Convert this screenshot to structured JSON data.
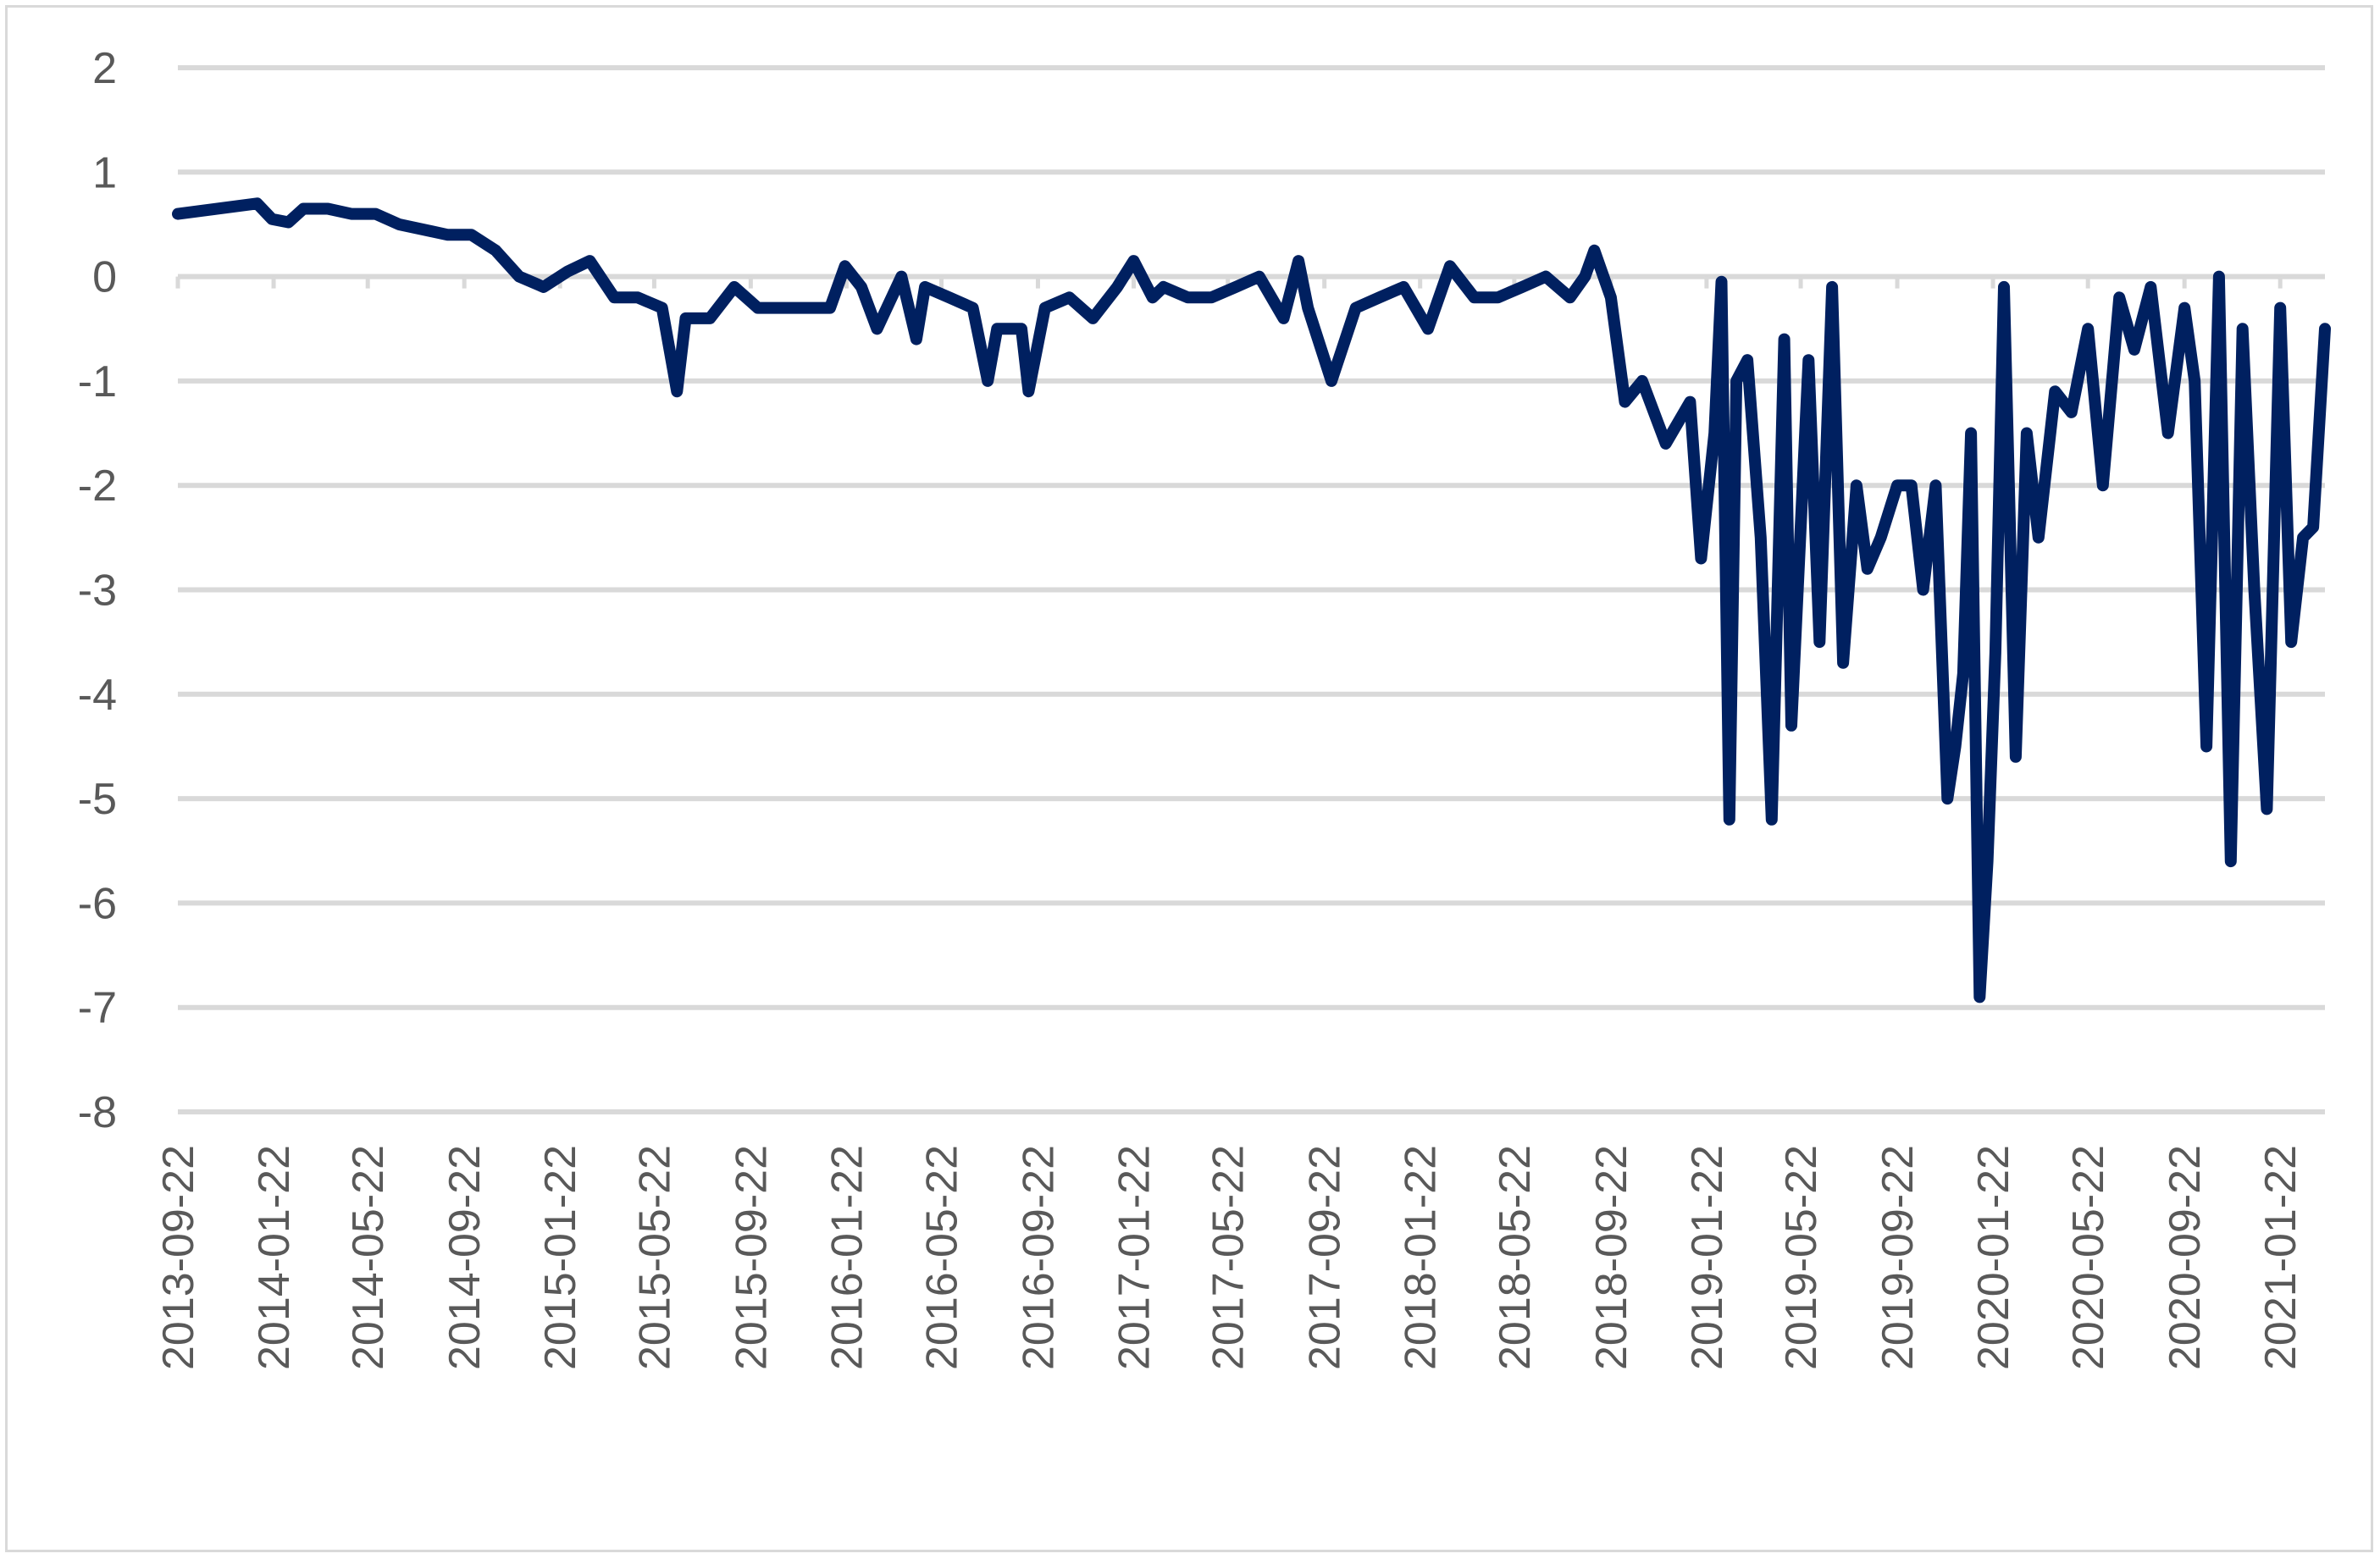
{
  "chart_data": {
    "type": "line",
    "title": "",
    "xlabel": "",
    "ylabel": "",
    "ylim": [
      -8,
      2
    ],
    "yticks": [
      2,
      1,
      0,
      -1,
      -2,
      -3,
      -4,
      -5,
      -6,
      -7,
      -8
    ],
    "xticks": [
      "2013-09-22",
      "2014-01-22",
      "2014-05-22",
      "2014-09-22",
      "2015-01-22",
      "2015-05-22",
      "2015-09-22",
      "2016-01-22",
      "2016-05-22",
      "2016-09-22",
      "2017-01-22",
      "2017-05-22",
      "2017-09-22",
      "2018-01-22",
      "2018-05-22",
      "2018-09-22",
      "2019-01-22",
      "2019-05-22",
      "2019-09-22",
      "2020-01-22",
      "2020-05-22",
      "2020-09-22",
      "2021-01-22"
    ],
    "grid": true,
    "legend": "none",
    "series": [
      {
        "color": "#002060",
        "x": [
          "2013-09-22",
          "2014-01-01",
          "2014-01-20",
          "2014-02-10",
          "2014-03-01",
          "2014-04-01",
          "2014-05-01",
          "2014-06-01",
          "2014-07-01",
          "2014-08-01",
          "2014-09-01",
          "2014-10-01",
          "2014-11-01",
          "2014-12-01",
          "2015-01-01",
          "2015-02-01",
          "2015-03-01",
          "2015-04-01",
          "2015-05-01",
          "2015-06-01",
          "2015-06-20",
          "2015-07-01",
          "2015-08-01",
          "2015-09-01",
          "2015-10-01",
          "2015-11-01",
          "2015-12-01",
          "2016-01-01",
          "2016-01-20",
          "2016-02-10",
          "2016-03-01",
          "2016-04-01",
          "2016-04-20",
          "2016-05-01",
          "2016-06-01",
          "2016-07-01",
          "2016-07-20",
          "2016-08-01",
          "2016-09-01",
          "2016-09-10",
          "2016-10-01",
          "2016-11-01",
          "2016-12-01",
          "2017-01-01",
          "2017-01-22",
          "2017-02-15",
          "2017-03-01",
          "2017-04-01",
          "2017-05-01",
          "2017-06-01",
          "2017-07-01",
          "2017-08-01",
          "2017-08-20",
          "2017-09-01",
          "2017-10-01",
          "2017-11-01",
          "2017-12-01",
          "2018-01-01",
          "2018-02-01",
          "2018-03-01",
          "2018-04-01",
          "2018-05-01",
          "2018-06-01",
          "2018-07-01",
          "2018-08-01",
          "2018-08-20",
          "2018-09-01",
          "2018-09-22",
          "2018-10-10",
          "2018-11-01",
          "2018-12-01",
          "2019-01-01",
          "2019-01-15",
          "2019-02-01",
          "2019-02-10",
          "2019-02-20",
          "2019-03-01",
          "2019-03-15",
          "2019-04-01",
          "2019-04-15",
          "2019-05-01",
          "2019-05-10",
          "2019-06-01",
          "2019-06-15",
          "2019-07-01",
          "2019-07-15",
          "2019-08-01",
          "2019-08-15",
          "2019-09-01",
          "2019-09-22",
          "2019-10-10",
          "2019-10-25",
          "2019-11-10",
          "2019-11-25",
          "2019-12-05",
          "2019-12-15",
          "2019-12-25",
          "2020-01-05",
          "2020-01-15",
          "2020-01-25",
          "2020-02-05",
          "2020-02-20",
          "2020-03-05",
          "2020-03-20",
          "2020-04-10",
          "2020-05-01",
          "2020-05-22",
          "2020-06-10",
          "2020-07-01",
          "2020-07-20",
          "2020-08-10",
          "2020-09-01",
          "2020-09-22",
          "2020-10-05",
          "2020-10-20",
          "2020-11-05",
          "2020-11-20",
          "2020-12-05",
          "2020-12-20",
          "2021-01-05",
          "2021-01-22",
          "2021-02-05",
          "2021-02-20",
          "2021-03-05",
          "2021-03-20"
        ],
        "values": [
          0.6,
          0.7,
          0.55,
          0.52,
          0.65,
          0.65,
          0.6,
          0.6,
          0.5,
          0.45,
          0.4,
          0.4,
          0.25,
          0.0,
          -0.1,
          0.05,
          0.15,
          -0.2,
          -0.2,
          -0.3,
          -1.1,
          -0.4,
          -0.4,
          -0.1,
          -0.3,
          -0.3,
          -0.3,
          -0.3,
          0.1,
          -0.1,
          -0.5,
          0.0,
          -0.6,
          -0.1,
          -0.2,
          -0.3,
          -1.0,
          -0.5,
          -0.5,
          -1.1,
          -0.3,
          -0.2,
          -0.4,
          -0.1,
          0.15,
          -0.2,
          -0.1,
          -0.2,
          -0.2,
          -0.1,
          0.0,
          -0.4,
          0.15,
          -0.3,
          -1.0,
          -0.3,
          -0.2,
          -0.1,
          -0.5,
          0.1,
          -0.2,
          -0.2,
          -0.1,
          0.0,
          -0.2,
          0.0,
          0.25,
          -0.2,
          -1.2,
          -1.0,
          -1.6,
          -1.2,
          -2.7,
          -1.5,
          -0.05,
          -5.2,
          -1.0,
          -0.8,
          -2.5,
          -5.2,
          -0.6,
          -4.3,
          -0.8,
          -3.5,
          -0.1,
          -3.7,
          -2.0,
          -2.8,
          -2.5,
          -2.0,
          -2.0,
          -3.0,
          -2.0,
          -5.0,
          -4.5,
          -3.8,
          -1.5,
          -6.9,
          -5.6,
          -3.6,
          -0.1,
          -4.6,
          -1.5,
          -2.5,
          -1.1,
          -1.3,
          -0.5,
          -2.0,
          -0.2,
          -0.7,
          -0.1,
          -1.5,
          -0.3,
          -1.0,
          -4.5,
          0.0,
          -5.6,
          -0.5,
          -3.0,
          -5.1,
          -0.3,
          -3.5,
          -2.5,
          -2.4,
          -0.5
        ]
      }
    ]
  }
}
